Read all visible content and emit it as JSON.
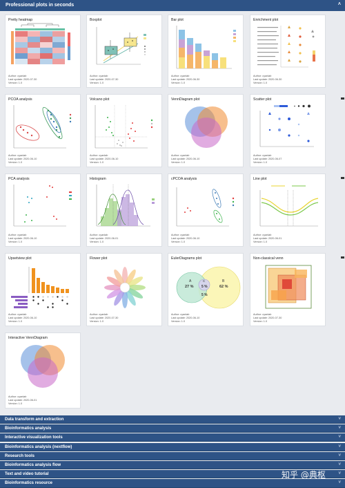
{
  "header": {
    "title": "Professional plots in seconds",
    "chevron": "˄"
  },
  "card_meta": {
    "author": "Author: cyanlab",
    "version": "Version: 1.0"
  },
  "cards": [
    {
      "title": "Pretty heatmap",
      "updated": "Last update: 2020-07-30"
    },
    {
      "title": "Boxplot",
      "updated": "Last update: 2020-07-30"
    },
    {
      "title": "Bar plot",
      "updated": "Last update: 2020-06-30"
    },
    {
      "title": "Enrichment plot",
      "updated": "Last update: 2020-06-30"
    },
    {
      "title": "PCOA analysis",
      "updated": "Last update: 2020-06-10"
    },
    {
      "title": "Volcano plot",
      "updated": "Last update: 2020-06-10"
    },
    {
      "title": "VennDiagram plot",
      "updated": "Last update: 2020-06-10"
    },
    {
      "title": "Scatter plot",
      "updated": "Last update: 2020-06-07"
    },
    {
      "title": "PCA analysis",
      "updated": "Last update: 2020-06-10"
    },
    {
      "title": "Histogram",
      "updated": "Last update: 2020-06-01"
    },
    {
      "title": "cPCOA analysis",
      "updated": "Last update: 2020-06-10"
    },
    {
      "title": "Line plot",
      "updated": "Last update: 2020-06-01"
    },
    {
      "title": "Upsetview plot",
      "updated": "Last update: 2020-06-10"
    },
    {
      "title": "Flower plot",
      "updated": "Last update: 2020-07-30"
    },
    {
      "title": "EulerDiagrams plot",
      "updated": "Last update: 2020-06-10"
    },
    {
      "title": "Non-classical venn",
      "updated": "Last update: 2020-07-30"
    },
    {
      "title": "Interactive VennDiagram",
      "updated": "Last update: 2020-06-01"
    }
  ],
  "euler": {
    "a_label": "A",
    "a_pct": "27 %",
    "c_label": "C",
    "c_pct": "5 %",
    "b_label": "B",
    "b_pct": "62 %",
    "d_pct": "5 %"
  },
  "sections": [
    "Data transform and extraction",
    "Bioinformatics analysis",
    "Interactive visualization tools",
    "Bioinformatics analysis (nextflow)",
    "Research tools",
    "Bioinformatics analysis flow",
    "Text and video tutorial",
    "Bioinformatics resource"
  ],
  "section_chevron": "˅",
  "watermark": "知乎 @典枢",
  "colors": {
    "header": "#2e5386",
    "page_bg": "#e9ebef"
  }
}
